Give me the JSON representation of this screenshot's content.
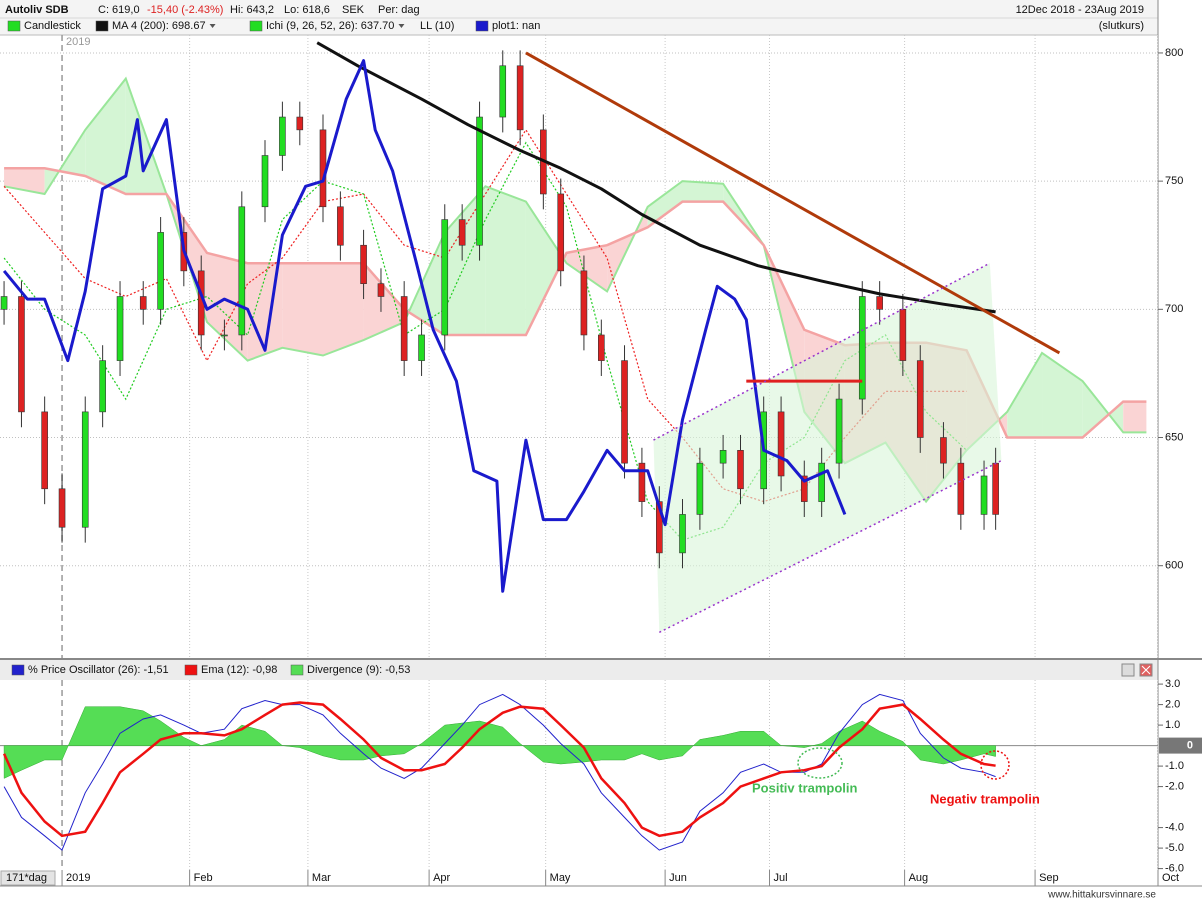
{
  "header": {
    "symbol": "Autoliv SDB",
    "close": "C: 619,0",
    "change": "-15,40 (-2.43%)",
    "high": "Hi: 643,2",
    "low": "Lo: 618,6",
    "currency": "SEK",
    "period": "Per: dag",
    "range": "12Dec 2018 - 23Aug 2019",
    "price_type": "(slutkurs)",
    "legend_extra": "LL (10)"
  },
  "footer": {
    "bars": "171*dag",
    "site": "www.hittakursvinnare.se"
  },
  "chart_data": [
    {
      "type": "candlestick",
      "ylim": [
        564,
        807
      ],
      "yticks": [
        600,
        650,
        700,
        750,
        800
      ],
      "grid": true,
      "candles": {
        "name": "Candlestick",
        "up_color": "#22dd22",
        "down_color": "#dd2222",
        "x": [
          -10,
          -7,
          -3,
          0,
          4,
          7,
          10,
          14,
          17,
          21,
          24,
          28,
          31,
          35,
          38,
          41,
          45,
          48,
          52,
          55,
          59,
          62,
          66,
          69,
          72,
          76,
          79,
          83,
          86,
          90,
          93,
          97,
          100,
          103,
          107,
          110,
          114,
          117,
          121,
          124,
          128,
          131,
          134,
          138,
          141,
          145,
          148,
          152,
          155,
          159,
          161
        ],
        "open": [
          700,
          705,
          660,
          630,
          615,
          660,
          680,
          705,
          700,
          730,
          715,
          690,
          690,
          740,
          760,
          775,
          770,
          740,
          725,
          710,
          705,
          680,
          690,
          735,
          725,
          775,
          795,
          770,
          745,
          715,
          690,
          680,
          640,
          625,
          605,
          620,
          640,
          645,
          630,
          660,
          635,
          625,
          640,
          665,
          705,
          700,
          680,
          650,
          640,
          620,
          640
        ],
        "high": [
          711,
          711,
          666,
          636,
          666,
          686,
          711,
          711,
          736,
          736,
          721,
          696,
          746,
          766,
          781,
          781,
          776,
          746,
          731,
          716,
          711,
          696,
          741,
          741,
          781,
          801,
          801,
          776,
          751,
          721,
          696,
          686,
          646,
          631,
          626,
          646,
          651,
          651,
          666,
          666,
          641,
          646,
          671,
          711,
          711,
          706,
          686,
          656,
          646,
          641,
          646
        ],
        "low": [
          694,
          654,
          624,
          609,
          609,
          654,
          674,
          694,
          694,
          709,
          684,
          684,
          684,
          734,
          754,
          764,
          734,
          719,
          704,
          699,
          674,
          674,
          684,
          719,
          719,
          769,
          764,
          739,
          709,
          684,
          674,
          634,
          619,
          599,
          599,
          614,
          634,
          624,
          624,
          629,
          619,
          619,
          634,
          659,
          694,
          674,
          644,
          634,
          614,
          614,
          614
        ],
        "close": [
          705,
          660,
          630,
          615,
          660,
          680,
          705,
          700,
          730,
          715,
          690,
          690,
          740,
          760,
          775,
          770,
          740,
          725,
          710,
          705,
          680,
          690,
          735,
          725,
          775,
          795,
          770,
          745,
          715,
          690,
          680,
          640,
          625,
          605,
          620,
          640,
          645,
          630,
          660,
          635,
          625,
          640,
          665,
          705,
          700,
          680,
          650,
          640,
          620,
          635,
          620
        ]
      },
      "ichimoku": {
        "name": "Ichi (9, 26, 52, 26): 637.70",
        "color": "#22dd22",
        "x": [
          -10,
          -3,
          4,
          11,
          18,
          25,
          32,
          38,
          45,
          52,
          59,
          66,
          73,
          80,
          87,
          94,
          101,
          107,
          114,
          121,
          128,
          135,
          142,
          149,
          156,
          163,
          169,
          176,
          183,
          187
        ],
        "span_a": [
          748,
          745,
          770,
          790,
          745,
          695,
          680,
          685,
          682,
          688,
          695,
          730,
          748,
          742,
          718,
          707,
          740,
          750,
          749,
          725,
          660,
          640,
          648,
          625,
          645,
          660,
          683,
          672,
          652,
          652
        ],
        "span_b": [
          755,
          755,
          752,
          745,
          745,
          722,
          718,
          718,
          718,
          718,
          700,
          690,
          690,
          690,
          722,
          725,
          732,
          742,
          742,
          725,
          692,
          686,
          687,
          687,
          684,
          650,
          650,
          650,
          664,
          664
        ],
        "span_a_color": "#99e699",
        "span_b_color": "#f4a3a3",
        "up_fill": "#d4f5d4",
        "down_fill": "#fad4d4",
        "conversion": [
          748,
          730,
          712,
          705,
          712,
          680,
          710,
          720,
          742,
          745,
          725,
          720,
          745,
          770,
          745,
          720,
          665,
          650,
          630,
          625,
          630,
          650,
          668,
          668,
          668,
          null,
          null,
          null,
          null,
          null
        ],
        "conversion_color": "#ee2222",
        "lagging": [
          720,
          700,
          690,
          665,
          700,
          705,
          690,
          735,
          750,
          745,
          690,
          700,
          735,
          765,
          740,
          680,
          625,
          610,
          615,
          640,
          650,
          680,
          690,
          660,
          645,
          null,
          null,
          null,
          null,
          null
        ],
        "lagging_color": "#22cc22"
      },
      "series": [
        {
          "name": "MA 4 (200): 698.67",
          "color": "#111111",
          "width": 3,
          "x": [
            44,
            51,
            62,
            70,
            79,
            86,
            93,
            100,
            110,
            120,
            131,
            141,
            152,
            161
          ],
          "values": [
            804,
            795,
            782,
            772,
            762,
            755,
            747,
            737,
            725,
            717,
            711,
            706,
            702,
            699
          ]
        },
        {
          "name": "plot1: nan",
          "color": "#1a1acc",
          "width": 3,
          "x": [
            -10,
            -6,
            -3,
            1,
            4,
            7,
            11,
            13,
            14,
            18,
            21,
            25,
            28,
            32,
            35,
            38,
            42,
            45,
            49,
            52,
            54,
            57,
            61,
            64,
            68,
            71,
            75,
            76,
            80,
            83,
            87,
            90,
            94,
            97,
            101,
            104,
            107,
            111,
            113,
            116,
            118,
            121,
            125,
            128,
            132,
            135
          ],
          "values": [
            715,
            704,
            704,
            680,
            707,
            747,
            752,
            774,
            754,
            774,
            723,
            700,
            704,
            700,
            684,
            729,
            748,
            750,
            782,
            797,
            770,
            754,
            719,
            692,
            672,
            637,
            633,
            590,
            649,
            618,
            618,
            629,
            645,
            637,
            637,
            616,
            657,
            692,
            709,
            704,
            696,
            645,
            641,
            633,
            637,
            620
          ]
        }
      ],
      "trendlines": [
        {
          "color": "#b03a0a",
          "dashed": false,
          "x": [
            80,
            172
          ],
          "y": [
            800,
            683
          ]
        },
        {
          "color": "#e02020",
          "dashed": false,
          "x": [
            118,
            138
          ],
          "y": [
            672,
            672
          ]
        },
        {
          "color": "#9933cc",
          "dashed": true,
          "x": [
            102,
            160
          ],
          "y": [
            649,
            718
          ]
        },
        {
          "color": "#9933cc",
          "dashed": true,
          "x": [
            103,
            162
          ],
          "y": [
            574,
            641
          ]
        }
      ],
      "channel_fill": "#d8f5d8"
    },
    {
      "type": "line",
      "xlim": [
        -10.7,
        189
      ],
      "xticks": [
        {
          "value": 0,
          "label": "2019"
        },
        {
          "value": 22,
          "label": "Feb"
        },
        {
          "value": 42.4,
          "label": "Mar"
        },
        {
          "value": 63.3,
          "label": "Apr"
        },
        {
          "value": 83.4,
          "label": "May"
        },
        {
          "value": 104,
          "label": "Jun"
        },
        {
          "value": 122,
          "label": "Jul"
        },
        {
          "value": 145.3,
          "label": "Aug"
        },
        {
          "value": 167.8,
          "label": "Sep"
        },
        {
          "value": 189,
          "label": "Oct"
        }
      ],
      "dashed_xtick": 0,
      "ylim": [
        -6.8,
        3.2
      ],
      "yticks": [
        {
          "value": 3,
          "label": "3.0"
        },
        {
          "value": 2,
          "label": "2.0"
        },
        {
          "value": 1,
          "label": "1.0"
        },
        0,
        {
          "value": -1,
          "label": "-1.0"
        },
        {
          "value": -2,
          "label": "-2.0"
        },
        {
          "value": -4,
          "label": "-4.0"
        },
        {
          "value": -5,
          "label": "-5.0"
        },
        {
          "value": -6,
          "label": "-6.0"
        }
      ],
      "x": [
        -10,
        -7,
        -3,
        0,
        4,
        7,
        10,
        14,
        17,
        21,
        24,
        28,
        31,
        35,
        38,
        41,
        45,
        48,
        52,
        55,
        59,
        62,
        66,
        69,
        72,
        76,
        79,
        83,
        86,
        90,
        93,
        97,
        100,
        103,
        107,
        110,
        114,
        117,
        121,
        124,
        128,
        131,
        134,
        138,
        141,
        145,
        148,
        152,
        155,
        159,
        161
      ],
      "series": [
        {
          "name": "% Price Oscillator (26): -1,51",
          "color": "#2222cc",
          "kind": "line",
          "width": 1,
          "values": [
            -2.0,
            -3.5,
            -4.4,
            -5.1,
            -2.3,
            -0.9,
            0.6,
            1.3,
            1.5,
            1.0,
            0.6,
            0.8,
            1.8,
            2.2,
            2.0,
            2.0,
            1.5,
            0.6,
            -0.4,
            -1.1,
            -1.6,
            -1.1,
            0.1,
            1.0,
            2.0,
            2.5,
            2.0,
            1.0,
            0.1,
            -0.9,
            -2.3,
            -3.5,
            -4.4,
            -5.1,
            -4.7,
            -3.2,
            -2.3,
            -1.3,
            -0.9,
            -1.3,
            -1.3,
            -0.9,
            0.6,
            2.0,
            2.5,
            2.2,
            0.6,
            -0.6,
            -1.1,
            -1.3,
            -1.51
          ]
        },
        {
          "name": "Ema (12): -0,98",
          "color": "#ee1111",
          "kind": "line",
          "width": 2.5,
          "values": [
            -0.4,
            -2.3,
            -3.7,
            -4.4,
            -4.2,
            -2.8,
            -1.3,
            -0.4,
            0.3,
            0.6,
            0.6,
            0.5,
            0.8,
            1.5,
            2.0,
            2.1,
            2.0,
            1.3,
            0.3,
            -0.6,
            -1.2,
            -1.2,
            -0.9,
            -0.1,
            0.8,
            1.6,
            1.9,
            1.8,
            1.0,
            -0.1,
            -1.6,
            -2.8,
            -4.0,
            -4.4,
            -4.2,
            -3.5,
            -2.8,
            -2.0,
            -1.6,
            -1.3,
            -1.2,
            -1.0,
            -0.1,
            0.8,
            1.8,
            2.0,
            1.3,
            0.3,
            -0.4,
            -0.9,
            -0.98
          ]
        },
        {
          "name": "Divergence (9): -0,53",
          "color": "#55dd55",
          "kind": "area",
          "width": 0,
          "values": [
            -1.6,
            -1.2,
            -0.7,
            -0.7,
            1.9,
            1.9,
            1.9,
            1.7,
            1.2,
            0.4,
            0,
            0.3,
            1.0,
            0.7,
            0,
            -0.1,
            -0.5,
            -0.7,
            -0.7,
            -0.5,
            -0.4,
            0.1,
            1.0,
            1.1,
            1.2,
            0.9,
            0.1,
            -0.8,
            -0.9,
            -0.8,
            -0.7,
            -0.7,
            -0.4,
            -0.7,
            -0.5,
            0.3,
            0.5,
            0.7,
            0.7,
            0,
            -0.1,
            0.1,
            0.7,
            1.2,
            0.7,
            0.2,
            -0.7,
            -0.9,
            -0.7,
            -0.4,
            -0.53
          ]
        }
      ],
      "annotations": [
        {
          "text": "Positiv trampolin",
          "color": "#44bb55"
        },
        {
          "text": "Negativ trampolin",
          "color": "#ee1111"
        }
      ]
    }
  ]
}
